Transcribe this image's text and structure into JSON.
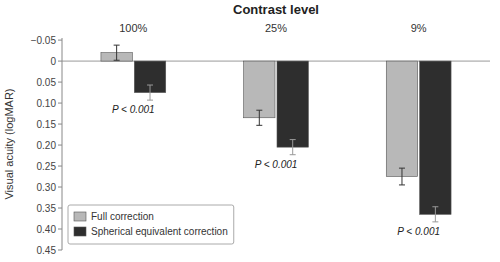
{
  "chart_data": {
    "type": "bar",
    "title": "Contrast level",
    "ylabel": "Visual acuity (logMAR)",
    "categories": [
      "100%",
      "25%",
      "9%"
    ],
    "series": [
      {
        "name": "Full correction",
        "color": "#b8b8b8",
        "values": [
          -0.02,
          0.135,
          0.275
        ],
        "errors": [
          0.018,
          0.018,
          0.02
        ]
      },
      {
        "name": "Spherical equivalent correction",
        "color": "#2e2e2e",
        "values": [
          0.075,
          0.205,
          0.365
        ],
        "errors": [
          0.018,
          0.018,
          0.018
        ]
      }
    ],
    "annotations": [
      "P < 0.001",
      "P < 0.001",
      "P < 0.001"
    ],
    "ylim": [
      0.45,
      -0.055
    ],
    "yticks": [
      {
        "value": -0.05,
        "label": "−0.05"
      },
      0,
      0.05,
      {
        "value": 0.1,
        "label": "0.10"
      },
      0.15,
      {
        "value": 0.2,
        "label": "0.20"
      },
      0.25,
      {
        "value": 0.3,
        "label": "0.30"
      },
      0.35,
      {
        "value": 0.4,
        "label": "0.40"
      },
      0.45
    ],
    "grid": false,
    "legend": "lower left"
  }
}
